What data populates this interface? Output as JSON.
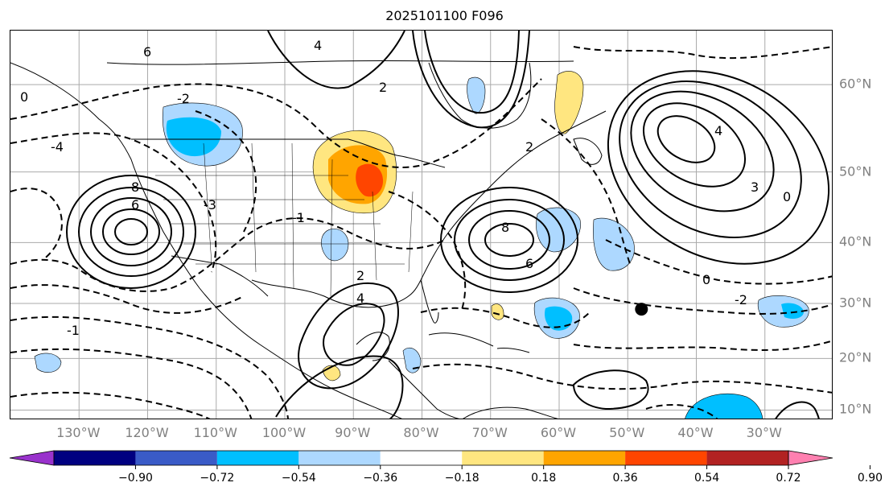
{
  "title": "2025101100 F096",
  "map": {
    "lon_labels": [
      {
        "lon": -130,
        "label": "130°W"
      },
      {
        "lon": -120,
        "label": "120°W"
      },
      {
        "lon": -110,
        "label": "110°W"
      },
      {
        "lon": -100,
        "label": "100°W"
      },
      {
        "lon": -90,
        "label": "90°W"
      },
      {
        "lon": -80,
        "label": "80°W"
      },
      {
        "lon": -70,
        "label": "70°W"
      },
      {
        "lon": -60,
        "label": "60°W"
      },
      {
        "lon": -50,
        "label": "50°W"
      },
      {
        "lon": -40,
        "label": "40°W"
      },
      {
        "lon": -30,
        "label": "30°W"
      }
    ],
    "lat_labels": [
      {
        "lat": 60,
        "label": "60°N"
      },
      {
        "lat": 50,
        "label": "50°N"
      },
      {
        "lat": 40,
        "label": "40°N"
      },
      {
        "lat": 30,
        "label": "30°N"
      },
      {
        "lat": 20,
        "label": "20°N"
      },
      {
        "lat": 10,
        "label": "10°N"
      }
    ],
    "extent": {
      "lon_min": -140,
      "lon_max": -20,
      "lat_min": 8,
      "lat_max": 65
    },
    "marker": {
      "lon": -48,
      "lat": 29,
      "color": "#000000"
    },
    "contour_labels": [
      "6",
      "4",
      "2",
      "0",
      "-2",
      "-4",
      "8",
      "6",
      "-3",
      "-1",
      "2",
      "4",
      "8",
      "6",
      "4",
      "3",
      "0",
      "2",
      "-2",
      "0",
      "-1"
    ]
  },
  "colorbar": {
    "colors": [
      "#9932cc",
      "#000080",
      "#3a5bc7",
      "#00bfff",
      "#add8ff",
      "#ffffff",
      "#ffe680",
      "#ffa500",
      "#ff4500",
      "#b22222",
      "#ff80b0"
    ],
    "tick_labels": [
      "−0.90",
      "−0.72",
      "−0.54",
      "−0.36",
      "−0.18",
      "0.18",
      "0.36",
      "0.54",
      "0.72",
      "0.90"
    ]
  }
}
